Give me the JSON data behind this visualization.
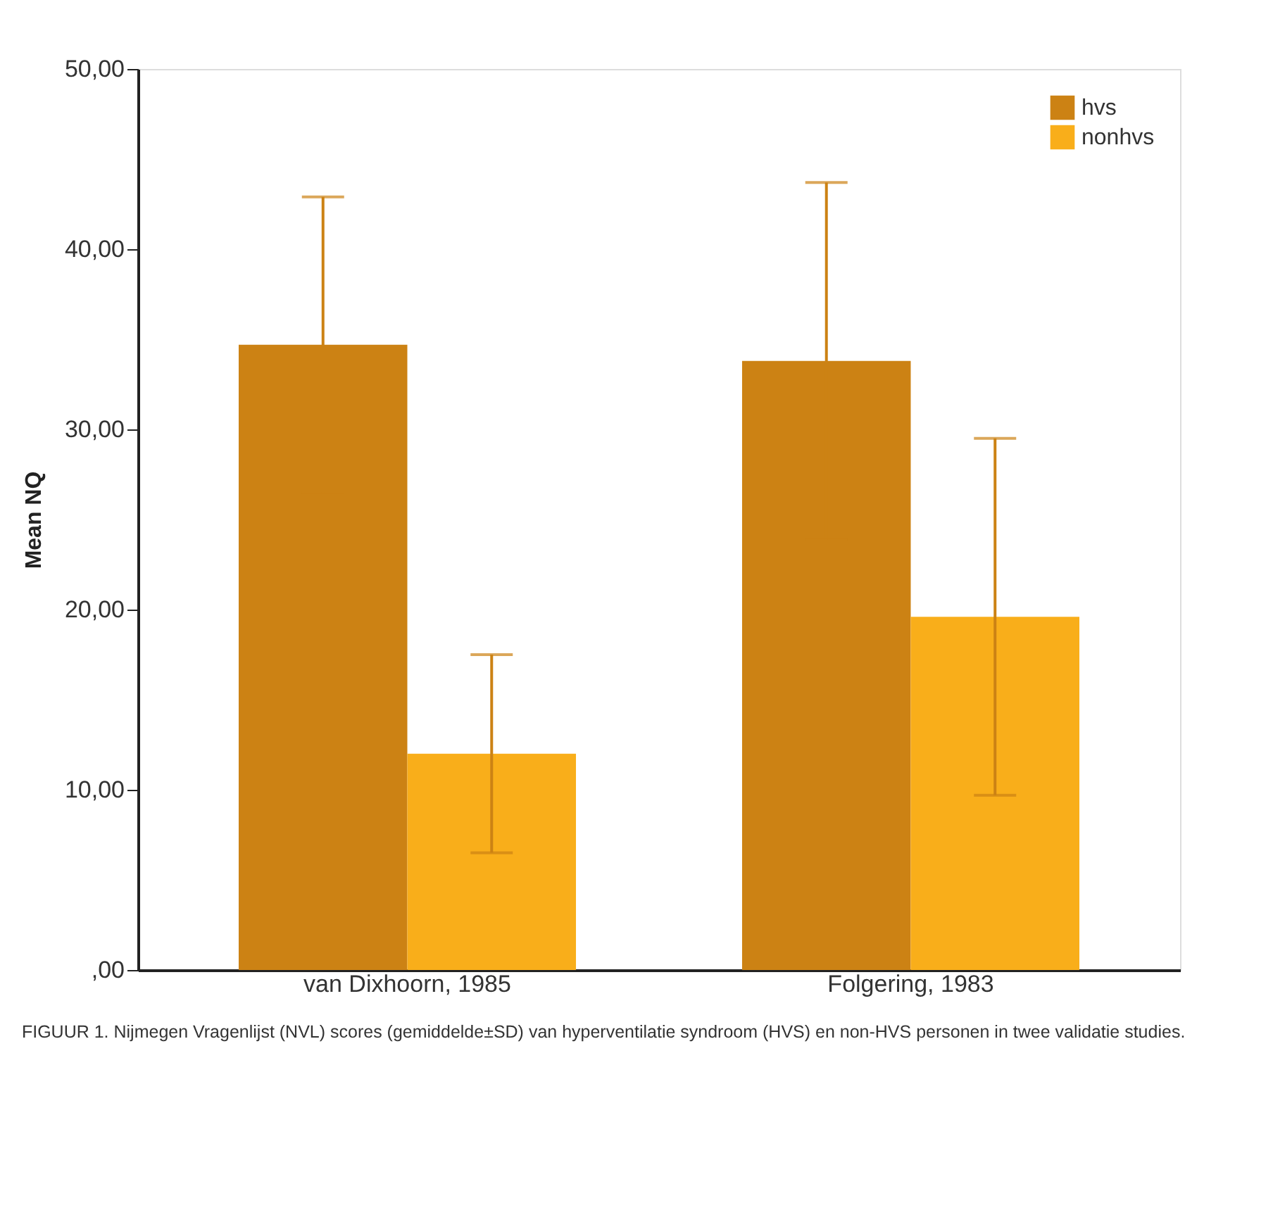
{
  "chart_data": {
    "type": "bar",
    "categories": [
      "van Dixhoorn, 1985",
      "Folgering, 1983"
    ],
    "series": [
      {
        "name": "hvs",
        "color": "#cc8214",
        "values": [
          34.7,
          33.8
        ],
        "errors": [
          8.2,
          9.9
        ]
      },
      {
        "name": "nonhvs",
        "color": "#f9ae1a",
        "values": [
          12.0,
          19.6
        ],
        "errors": [
          5.5,
          9.9
        ]
      }
    ],
    "ylabel": "Mean NQ",
    "ylim": [
      0,
      50
    ],
    "yticks": [
      {
        "value": 0,
        "label": ",00"
      },
      {
        "value": 10,
        "label": "10,00"
      },
      {
        "value": 20,
        "label": "20,00"
      },
      {
        "value": 30,
        "label": "30,00"
      },
      {
        "value": 40,
        "label": "40,00"
      },
      {
        "value": 50,
        "label": "50,00"
      }
    ],
    "grid": false,
    "legend": "top right",
    "annotations": [
      "FIGUUR 1. Nijmegen Vragenlijst (NVL) scores (gemiddelde±SD) van hyperventilatie syndroom (HVS) en non-HVS personen in twee validatie studies."
    ]
  }
}
